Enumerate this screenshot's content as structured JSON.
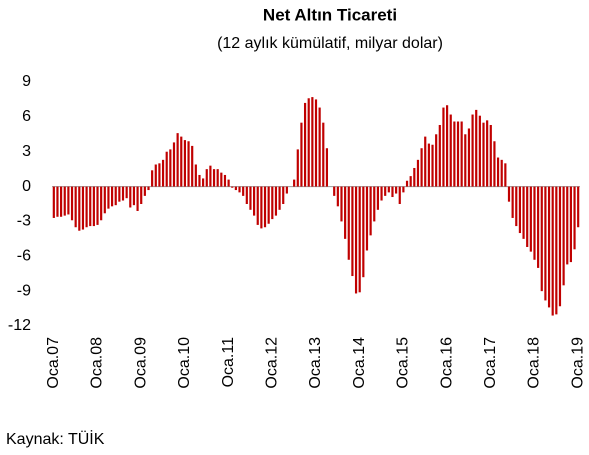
{
  "chart_data": {
    "type": "bar",
    "title": "Net Altın Ticareti",
    "subtitle": "(12 aylık kümülatif, milyar dolar)",
    "source": "Kaynak: TÜİK",
    "categories": [
      "Oca.07",
      null,
      null,
      null,
      null,
      null,
      null,
      null,
      null,
      null,
      null,
      null,
      "Oca.08",
      null,
      null,
      null,
      null,
      null,
      null,
      null,
      null,
      null,
      null,
      null,
      "Oca.09",
      null,
      null,
      null,
      null,
      null,
      null,
      null,
      null,
      null,
      null,
      null,
      "Oca.10",
      null,
      null,
      null,
      null,
      null,
      null,
      null,
      null,
      null,
      null,
      null,
      "Oca.11",
      null,
      null,
      null,
      null,
      null,
      null,
      null,
      null,
      null,
      null,
      null,
      "Oca.12",
      null,
      null,
      null,
      null,
      null,
      null,
      null,
      null,
      null,
      null,
      null,
      "Oca.13",
      null,
      null,
      null,
      null,
      null,
      null,
      null,
      null,
      null,
      null,
      null,
      "Oca.14",
      null,
      null,
      null,
      null,
      null,
      null,
      null,
      null,
      null,
      null,
      null,
      "Oca.15",
      null,
      null,
      null,
      null,
      null,
      null,
      null,
      null,
      null,
      null,
      null,
      "Oca.16",
      null,
      null,
      null,
      null,
      null,
      null,
      null,
      null,
      null,
      null,
      null,
      "Oca.17",
      null,
      null,
      null,
      null,
      null,
      null,
      null,
      null,
      null,
      null,
      null,
      "Oca.18",
      null,
      null,
      null,
      null,
      null,
      null,
      null,
      null,
      null,
      null,
      null,
      "Oca.19"
    ],
    "values": [
      -2.7,
      -2.6,
      -2.6,
      -2.5,
      -2.4,
      -2.9,
      -3.5,
      -3.8,
      -3.7,
      -3.5,
      -3.4,
      -3.4,
      -3.3,
      -2.9,
      -2.3,
      -1.9,
      -1.7,
      -1.6,
      -1.3,
      -1.2,
      -1.0,
      -1.8,
      -1.6,
      -2.1,
      -1.5,
      -0.8,
      -0.3,
      1.4,
      1.9,
      2.0,
      2.3,
      3.0,
      3.2,
      3.8,
      4.6,
      4.3,
      4.0,
      3.9,
      3.5,
      1.9,
      1.0,
      0.7,
      1.5,
      1.8,
      1.5,
      1.5,
      1.2,
      1.0,
      0.6,
      -0.1,
      -0.3,
      -0.5,
      -0.8,
      -1.5,
      -2.0,
      -2.5,
      -3.3,
      -3.6,
      -3.5,
      -3.2,
      -2.8,
      -2.5,
      -2.0,
      -1.5,
      -0.6,
      0.0,
      0.6,
      3.2,
      5.5,
      7.2,
      7.6,
      7.7,
      7.5,
      6.8,
      5.5,
      3.3,
      0.0,
      -0.8,
      -1.7,
      -3.0,
      -4.5,
      -6.3,
      -7.7,
      -9.2,
      -9.1,
      -7.8,
      -5.5,
      -4.2,
      -3.0,
      -2.0,
      -1.2,
      -0.8,
      -0.5,
      -0.9,
      -0.6,
      -1.5,
      -0.5,
      0.5,
      0.9,
      1.6,
      2.3,
      3.3,
      4.3,
      3.7,
      3.6,
      4.5,
      5.3,
      6.8,
      7.0,
      6.2,
      5.6,
      5.6,
      5.6,
      4.5,
      5.0,
      6.2,
      6.6,
      6.1,
      5.5,
      5.7,
      5.3,
      3.9,
      2.5,
      2.3,
      2.0,
      -1.3,
      -2.7,
      -3.4,
      -4.0,
      -4.5,
      -5.2,
      -5.6,
      -6.3,
      -7.0,
      -9.0,
      -9.8,
      -10.4,
      -11.1,
      -11.0,
      -10.3,
      -8.5,
      -6.7,
      -6.5,
      -5.4,
      -3.5
    ],
    "color": "#c00000",
    "ylim": [
      -12,
      9
    ],
    "yticks": [
      9,
      6,
      3,
      0,
      -3,
      -6,
      -9,
      -12
    ],
    "grid": false
  }
}
